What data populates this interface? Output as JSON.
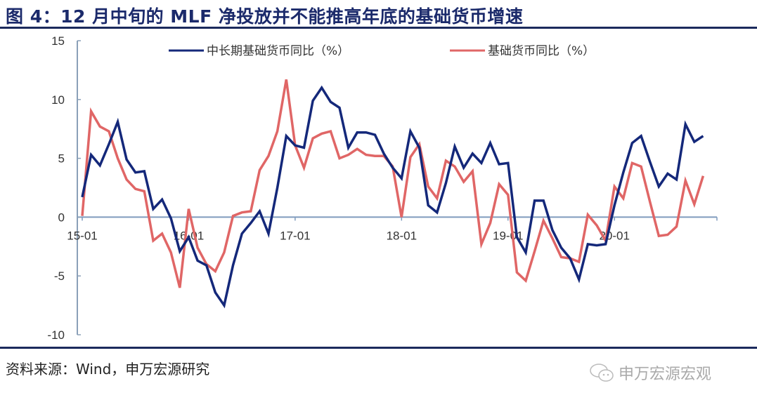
{
  "title": "图 4：12 月中旬的 MLF 净投放并不能推高年底的基础货币增速",
  "source": "资料来源：Wind，申万宏源研究",
  "watermark": {
    "icon": "wechat-icon",
    "text": "申万宏源宏观"
  },
  "colors": {
    "title": "#1b2a6b",
    "series1": "#14287a",
    "series2": "#e06666"
  },
  "chart_data": {
    "type": "line",
    "title": "",
    "xlabel": "",
    "ylabel": "",
    "ylim": [
      -10,
      15
    ],
    "yticks": [
      -10,
      -5,
      0,
      5,
      10,
      15
    ],
    "x_start": "2015-01",
    "x_end": "2020-11",
    "xtick_labels": [
      "15-01",
      "16-01",
      "17-01",
      "18-01",
      "19-01",
      "20-01"
    ],
    "xtick_index": [
      0,
      12,
      24,
      36,
      48,
      60
    ],
    "legend_placement": "top",
    "grid": false,
    "series": [
      {
        "name": "中长期基础货币同比（%）",
        "color": "#14287a",
        "values": [
          1.7,
          5.3,
          4.4,
          6.2,
          8.1,
          4.9,
          3.8,
          3.9,
          0.7,
          1.5,
          -0.1,
          -2.9,
          -1.7,
          -3.7,
          -4.1,
          -6.4,
          -7.5,
          -4.1,
          -1.4,
          -0.5,
          0.5,
          -1.4,
          2.5,
          6.9,
          6.1,
          5.9,
          9.9,
          11.0,
          9.8,
          9.3,
          5.9,
          7.2,
          7.2,
          7.0,
          5.4,
          4.2,
          3.3,
          7.3,
          5.9,
          1.0,
          0.4,
          2.9,
          6.0,
          4.2,
          5.4,
          4.6,
          6.3,
          4.5,
          4.6,
          -1.7,
          -3.0,
          1.4,
          1.4,
          -1.1,
          -2.6,
          -3.5,
          -5.3,
          -2.3,
          -2.4,
          -2.3,
          1.0,
          3.8,
          6.3,
          6.9,
          4.7,
          2.6,
          3.7,
          3.2,
          7.9,
          6.4,
          6.9
        ]
      },
      {
        "name": "基础货币同比（%）",
        "color": "#e06666",
        "values": [
          0.1,
          9.0,
          7.7,
          7.3,
          5.0,
          3.2,
          2.4,
          2.2,
          -2.0,
          -1.4,
          -3.0,
          -6.0,
          0.7,
          -2.6,
          -4.0,
          -4.6,
          -3.0,
          0.1,
          0.4,
          0.5,
          4.0,
          5.2,
          7.3,
          11.7,
          6.1,
          4.2,
          6.7,
          7.1,
          7.3,
          5.0,
          5.3,
          5.8,
          5.3,
          5.2,
          5.2,
          4.3,
          0.0,
          5.1,
          6.2,
          2.6,
          1.6,
          4.8,
          4.3,
          3.0,
          3.9,
          -2.3,
          -0.5,
          2.8,
          1.9,
          -4.7,
          -5.4,
          -2.9,
          -0.3,
          -1.8,
          -3.4,
          -3.5,
          -3.8,
          0.2,
          -0.7,
          -2.0,
          2.6,
          1.6,
          4.6,
          4.3,
          1.3,
          -1.6,
          -1.5,
          -0.8,
          3.1,
          1.1,
          3.5
        ]
      }
    ]
  }
}
